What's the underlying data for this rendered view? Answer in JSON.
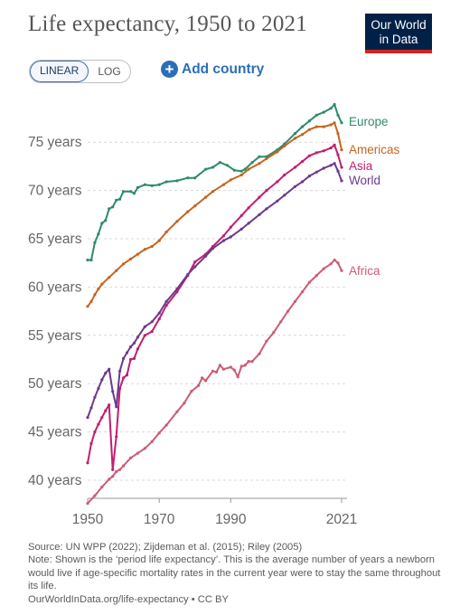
{
  "title": "Life expectancy, 1950 to 2021",
  "logo": {
    "line1": "Our World",
    "line2": "in Data"
  },
  "controls": {
    "linear_label": "LINEAR",
    "log_label": "LOG",
    "add_country_label": "Add country",
    "selected_scale": "linear"
  },
  "footer": {
    "source": "Source: UN WPP (2022); Zijdeman et al. (2015); Riley (2005)",
    "note": "Note: Shown is the ‘period life expectancy’. This is the average number of years a newborn would live if age-specific mortality rates in the current year were to stay the same throughout its life.",
    "link": "OurWorldInData.org/life-expectancy • CC BY"
  },
  "colors": {
    "grid": "#d9d9d9",
    "axis": "#999999",
    "tick_text": "#666666",
    "logo_bg": "#002147",
    "logo_bar": "#ce261e"
  },
  "chart_data": {
    "type": "line",
    "y_tick_labels": [
      "40 years",
      "45 years",
      "50 years",
      "55 years",
      "60 years",
      "65 years",
      "70 years",
      "75 years"
    ],
    "y_ticks": [
      40,
      45,
      50,
      55,
      60,
      65,
      70,
      75
    ],
    "x_ticks": [
      1950,
      1970,
      1990,
      2021
    ],
    "x_tick_labels": [
      "1950",
      "1970",
      "1990",
      "2021"
    ],
    "xlim": [
      1950,
      2021
    ],
    "ylim": [
      38,
      80
    ],
    "grid": "horizontal dashed",
    "legend": "inline labels at line ends",
    "series": [
      {
        "name": "Europe",
        "color": "#2e8b6a",
        "points": [
          [
            1950,
            62.8
          ],
          [
            1951,
            62.8
          ],
          [
            1952,
            64.6
          ],
          [
            1953,
            65.5
          ],
          [
            1954,
            66.6
          ],
          [
            1955,
            66.9
          ],
          [
            1956,
            68.1
          ],
          [
            1957,
            68.3
          ],
          [
            1958,
            69.0
          ],
          [
            1959,
            69.1
          ],
          [
            1960,
            69.9
          ],
          [
            1962,
            69.9
          ],
          [
            1963,
            69.7
          ],
          [
            1964,
            70.3
          ],
          [
            1966,
            70.6
          ],
          [
            1968,
            70.5
          ],
          [
            1970,
            70.6
          ],
          [
            1972,
            70.9
          ],
          [
            1975,
            71.0
          ],
          [
            1978,
            71.3
          ],
          [
            1980,
            71.3
          ],
          [
            1983,
            72.2
          ],
          [
            1985,
            72.4
          ],
          [
            1987,
            72.9
          ],
          [
            1989,
            72.6
          ],
          [
            1991,
            72.1
          ],
          [
            1993,
            72.0
          ],
          [
            1994,
            72.2
          ],
          [
            1996,
            72.9
          ],
          [
            1998,
            73.5
          ],
          [
            2000,
            73.5
          ],
          [
            2003,
            74.2
          ],
          [
            2005,
            74.8
          ],
          [
            2008,
            75.9
          ],
          [
            2010,
            76.6
          ],
          [
            2012,
            77.2
          ],
          [
            2014,
            77.8
          ],
          [
            2016,
            78.1
          ],
          [
            2018,
            78.5
          ],
          [
            2019,
            78.9
          ],
          [
            2020,
            77.8
          ],
          [
            2021,
            77.0
          ]
        ]
      },
      {
        "name": "Americas",
        "color": "#c4651f",
        "points": [
          [
            1950,
            58.0
          ],
          [
            1951,
            58.5
          ],
          [
            1952,
            59.2
          ],
          [
            1953,
            59.8
          ],
          [
            1954,
            60.3
          ],
          [
            1956,
            61.0
          ],
          [
            1958,
            61.7
          ],
          [
            1960,
            62.4
          ],
          [
            1962,
            62.9
          ],
          [
            1964,
            63.4
          ],
          [
            1966,
            63.9
          ],
          [
            1968,
            64.2
          ],
          [
            1970,
            64.8
          ],
          [
            1972,
            65.7
          ],
          [
            1975,
            66.8
          ],
          [
            1978,
            67.8
          ],
          [
            1980,
            68.4
          ],
          [
            1983,
            69.3
          ],
          [
            1985,
            69.9
          ],
          [
            1988,
            70.6
          ],
          [
            1990,
            71.1
          ],
          [
            1993,
            71.6
          ],
          [
            1995,
            72.2
          ],
          [
            1998,
            72.8
          ],
          [
            2000,
            73.3
          ],
          [
            2003,
            74.0
          ],
          [
            2005,
            74.6
          ],
          [
            2008,
            75.4
          ],
          [
            2010,
            75.8
          ],
          [
            2012,
            76.3
          ],
          [
            2014,
            76.6
          ],
          [
            2016,
            76.6
          ],
          [
            2018,
            76.8
          ],
          [
            2019,
            77.0
          ],
          [
            2020,
            75.9
          ],
          [
            2021,
            74.2
          ]
        ]
      },
      {
        "name": "Asia",
        "color": "#c21e6f",
        "points": [
          [
            1950,
            41.8
          ],
          [
            1951,
            43.8
          ],
          [
            1952,
            45.0
          ],
          [
            1953,
            45.8
          ],
          [
            1954,
            46.5
          ],
          [
            1955,
            47.2
          ],
          [
            1956,
            47.8
          ],
          [
            1957,
            41.1
          ],
          [
            1958,
            44.5
          ],
          [
            1959,
            49.5
          ],
          [
            1960,
            50.6
          ],
          [
            1961,
            50.9
          ],
          [
            1962,
            52.5
          ],
          [
            1963,
            52.6
          ],
          [
            1964,
            53.6
          ],
          [
            1966,
            55.0
          ],
          [
            1968,
            55.4
          ],
          [
            1970,
            56.7
          ],
          [
            1972,
            58.1
          ],
          [
            1975,
            59.5
          ],
          [
            1978,
            61.2
          ],
          [
            1980,
            62.6
          ],
          [
            1983,
            63.4
          ],
          [
            1985,
            64.2
          ],
          [
            1988,
            65.3
          ],
          [
            1990,
            66.2
          ],
          [
            1993,
            67.4
          ],
          [
            1995,
            68.2
          ],
          [
            1998,
            69.3
          ],
          [
            2000,
            70.0
          ],
          [
            2003,
            70.9
          ],
          [
            2005,
            71.6
          ],
          [
            2008,
            72.4
          ],
          [
            2010,
            73.0
          ],
          [
            2012,
            73.6
          ],
          [
            2014,
            73.9
          ],
          [
            2016,
            74.1
          ],
          [
            2018,
            74.4
          ],
          [
            2019,
            74.7
          ],
          [
            2020,
            73.7
          ],
          [
            2021,
            72.4
          ]
        ]
      },
      {
        "name": "World",
        "color": "#6b3a8f",
        "points": [
          [
            1950,
            46.5
          ],
          [
            1951,
            47.5
          ],
          [
            1952,
            48.6
          ],
          [
            1953,
            49.5
          ],
          [
            1954,
            50.4
          ],
          [
            1955,
            51.1
          ],
          [
            1956,
            51.5
          ],
          [
            1957,
            49.2
          ],
          [
            1958,
            47.6
          ],
          [
            1959,
            51.3
          ],
          [
            1960,
            52.6
          ],
          [
            1961,
            53.2
          ],
          [
            1962,
            53.8
          ],
          [
            1963,
            54.2
          ],
          [
            1964,
            54.8
          ],
          [
            1966,
            55.9
          ],
          [
            1968,
            56.4
          ],
          [
            1970,
            57.3
          ],
          [
            1972,
            58.5
          ],
          [
            1975,
            59.8
          ],
          [
            1978,
            61.3
          ],
          [
            1980,
            62.1
          ],
          [
            1983,
            63.2
          ],
          [
            1985,
            64.0
          ],
          [
            1988,
            64.8
          ],
          [
            1990,
            65.2
          ],
          [
            1993,
            66.0
          ],
          [
            1995,
            66.6
          ],
          [
            1998,
            67.5
          ],
          [
            2000,
            68.1
          ],
          [
            2003,
            68.9
          ],
          [
            2005,
            69.5
          ],
          [
            2008,
            70.4
          ],
          [
            2010,
            70.9
          ],
          [
            2012,
            71.5
          ],
          [
            2014,
            71.9
          ],
          [
            2016,
            72.3
          ],
          [
            2018,
            72.6
          ],
          [
            2019,
            72.8
          ],
          [
            2020,
            72.0
          ],
          [
            2021,
            71.0
          ]
        ]
      },
      {
        "name": "Africa",
        "color": "#cc5c75",
        "points": [
          [
            1950,
            37.6
          ],
          [
            1952,
            38.4
          ],
          [
            1954,
            39.3
          ],
          [
            1956,
            40.1
          ],
          [
            1957,
            40.4
          ],
          [
            1958,
            40.9
          ],
          [
            1959,
            41.1
          ],
          [
            1960,
            41.5
          ],
          [
            1962,
            42.3
          ],
          [
            1964,
            42.8
          ],
          [
            1966,
            43.3
          ],
          [
            1968,
            44.0
          ],
          [
            1970,
            44.9
          ],
          [
            1972,
            45.7
          ],
          [
            1975,
            47.1
          ],
          [
            1977,
            48.0
          ],
          [
            1979,
            49.2
          ],
          [
            1981,
            49.8
          ],
          [
            1982,
            50.6
          ],
          [
            1983,
            50.3
          ],
          [
            1985,
            51.3
          ],
          [
            1986,
            51.2
          ],
          [
            1987,
            51.9
          ],
          [
            1988,
            51.5
          ],
          [
            1990,
            51.7
          ],
          [
            1991,
            51.4
          ],
          [
            1992,
            50.7
          ],
          [
            1993,
            51.8
          ],
          [
            1994,
            51.9
          ],
          [
            1995,
            52.3
          ],
          [
            1996,
            52.3
          ],
          [
            1998,
            53.1
          ],
          [
            2000,
            54.4
          ],
          [
            2002,
            55.3
          ],
          [
            2004,
            56.4
          ],
          [
            2006,
            57.5
          ],
          [
            2008,
            58.5
          ],
          [
            2010,
            59.5
          ],
          [
            2012,
            60.5
          ],
          [
            2014,
            61.2
          ],
          [
            2016,
            61.9
          ],
          [
            2018,
            62.4
          ],
          [
            2019,
            62.8
          ],
          [
            2020,
            62.5
          ],
          [
            2021,
            61.7
          ]
        ]
      }
    ]
  }
}
